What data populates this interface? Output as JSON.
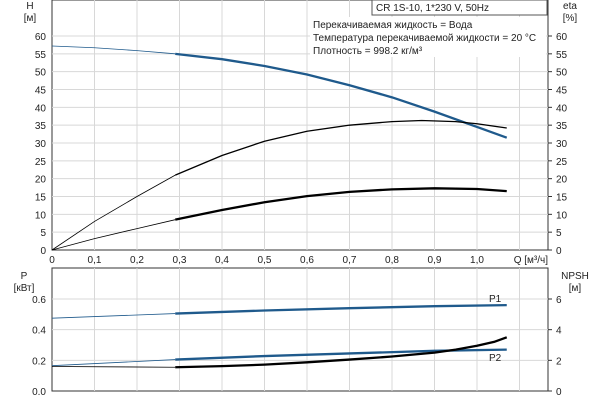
{
  "chart_data": [
    {
      "type": "line",
      "title": "CR 1S-10, 1*230 V, 50Hz",
      "annotations": [
        "Перекачиваемая жидкость = Вода",
        "Температура перекачиваемой жидкости = 20 °C",
        "Плотность = 998.2 кг/м³"
      ],
      "xlabel": "Q [м³/ч]",
      "ylabel": "H",
      "yunit": "[м]",
      "y2label": "eta",
      "y2unit": "[%]",
      "xlim": [
        0,
        1.17
      ],
      "ylim": [
        0,
        65
      ],
      "grid": true,
      "xticks": [
        "0",
        "0,1",
        "0,2",
        "0,3",
        "0,4",
        "0,5",
        "0,6",
        "0,7",
        "0,8",
        "0,9",
        "1,0"
      ],
      "yticks": [
        "0",
        "5",
        "10",
        "15",
        "20",
        "25",
        "30",
        "35",
        "40",
        "45",
        "50",
        "55",
        "60"
      ],
      "series": [
        {
          "axis": "left",
          "color": "#1f5a8c",
          "x": [
            0,
            0.1,
            0.2,
            0.29,
            0.4,
            0.5,
            0.6,
            0.7,
            0.8,
            0.9,
            1.0,
            1.07
          ],
          "y": [
            57.2,
            56.7,
            55.9,
            55,
            53.5,
            51.6,
            49.2,
            46.2,
            42.8,
            38.8,
            34.5,
            31.5
          ]
        },
        {
          "axis": "right",
          "color": "#000000",
          "x": [
            0,
            0.1,
            0.2,
            0.29,
            0.4,
            0.5,
            0.6,
            0.7,
            0.8,
            0.87,
            0.95,
            1.0,
            1.07
          ],
          "y": [
            0,
            8,
            15,
            21,
            26.5,
            30.5,
            33.3,
            35,
            36,
            36.3,
            36,
            35.4,
            34.2
          ]
        },
        {
          "axis": "right",
          "color": "#000000",
          "x": [
            0,
            0.1,
            0.2,
            0.29,
            0.4,
            0.5,
            0.6,
            0.7,
            0.8,
            0.9,
            1.0,
            1.07
          ],
          "y": [
            0,
            3.2,
            6,
            8.5,
            11.2,
            13.4,
            15.1,
            16.3,
            17,
            17.3,
            17.1,
            16.5
          ]
        }
      ]
    },
    {
      "type": "line",
      "xlim": [
        0,
        1.17
      ],
      "ylabel": "P",
      "yunit": "[кВт]",
      "y2label": "NPSH",
      "y2unit": "[м]",
      "ylim": [
        0,
        0.8
      ],
      "y2lim": [
        0,
        8
      ],
      "grid": true,
      "yticks": [
        "0.0",
        "0.2",
        "0.4",
        "0.6"
      ],
      "y2ticks": [
        "0",
        "2",
        "4",
        "6"
      ],
      "series": [
        {
          "name": "P1",
          "axis": "left",
          "color": "#1f5a8c",
          "x": [
            0,
            0.29,
            0.5,
            0.7,
            0.9,
            1.07
          ],
          "y": [
            0.475,
            0.505,
            0.525,
            0.54,
            0.553,
            0.56
          ]
        },
        {
          "name": "P2",
          "axis": "left",
          "color": "#1f5a8c",
          "x": [
            0,
            0.29,
            0.5,
            0.7,
            0.9,
            1.07
          ],
          "y": [
            0.165,
            0.205,
            0.228,
            0.245,
            0.262,
            0.27
          ]
        },
        {
          "axis": "right",
          "color": "#000000",
          "x": [
            0,
            0.29,
            0.4,
            0.5,
            0.6,
            0.7,
            0.8,
            0.9,
            0.95,
            1.0,
            1.04,
            1.07
          ],
          "y": [
            1.6,
            1.55,
            1.62,
            1.72,
            1.87,
            2.05,
            2.25,
            2.5,
            2.7,
            2.95,
            3.2,
            3.5
          ]
        }
      ]
    }
  ]
}
